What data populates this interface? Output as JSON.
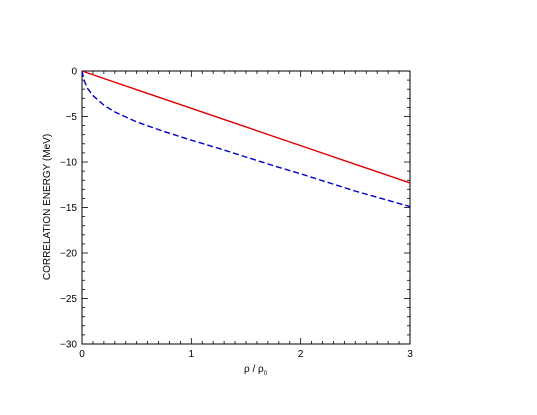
{
  "chart_data": {
    "type": "line",
    "title": "",
    "xlabel": "ρ / ρ",
    "xlabel_subscript": "0",
    "ylabel": "CORRELATION ENERGY  (MeV)",
    "xlim": [
      0,
      3
    ],
    "ylim": [
      -30,
      0
    ],
    "xticks": [
      0,
      1,
      2,
      3
    ],
    "yticks": [
      0,
      -5,
      -10,
      -15,
      -20,
      -25,
      -30
    ],
    "ytick_labels": [
      "0",
      "−5",
      "−10",
      "−15",
      "−20",
      "−25",
      "−30"
    ],
    "grid": false,
    "legend": "none",
    "series": [
      {
        "color": "#e00000",
        "style": "solid",
        "x": [
          0,
          0.5,
          1,
          1.5,
          2,
          2.5,
          3
        ],
        "y": [
          0,
          -2.05,
          -4.1,
          -6.15,
          -8.2,
          -10.25,
          -12.3
        ]
      },
      {
        "color": "#0000cc",
        "style": "dashed",
        "x": [
          0,
          0.02,
          0.05,
          0.1,
          0.2,
          0.3,
          0.5,
          0.75,
          1,
          1.25,
          1.5,
          1.75,
          2,
          2.25,
          2.5,
          2.75,
          3
        ],
        "y": [
          0,
          -1.05,
          -1.9,
          -2.7,
          -3.75,
          -4.5,
          -5.6,
          -6.65,
          -7.6,
          -8.5,
          -9.45,
          -10.4,
          -11.3,
          -12.25,
          -13.2,
          -14.05,
          -14.9
        ]
      }
    ]
  }
}
